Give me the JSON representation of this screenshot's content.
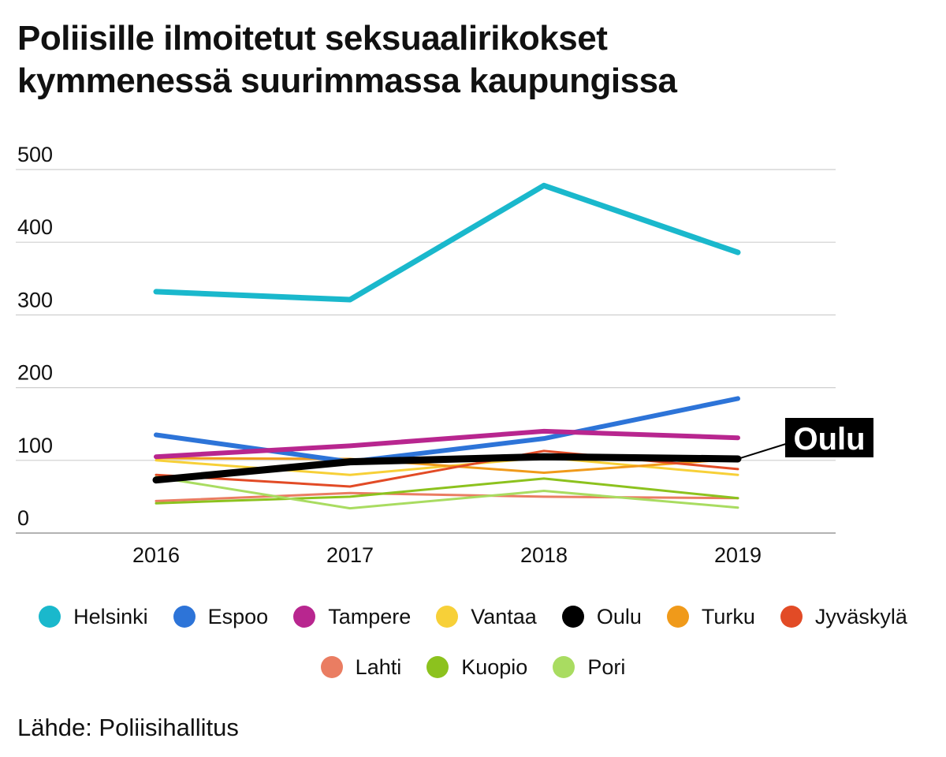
{
  "title_lines": [
    "Poliisille ilmoitetut seksuaalirikokset",
    "kymmenessä suurimmassa kaupungissa"
  ],
  "source": "Lähde: Poliisihallitus",
  "highlight_label": "Oulu",
  "chart_data": {
    "type": "line",
    "title": "Poliisille ilmoitetut seksuaalirikokset kymmenessä suurimmassa kaupungissa",
    "x": [
      "2016",
      "2017",
      "2018",
      "2019"
    ],
    "yticks": [
      0,
      100,
      200,
      300,
      400,
      500
    ],
    "ylim": [
      0,
      500
    ],
    "grid": true,
    "xlabel": "",
    "ylabel": "",
    "legend_position": "bottom",
    "highlight_series": "Oulu",
    "series": [
      {
        "name": "Helsinki",
        "color": "#1ab8cc",
        "values": [
          332,
          321,
          478,
          386
        ]
      },
      {
        "name": "Espoo",
        "color": "#2d74d8",
        "values": [
          135,
          98,
          130,
          185
        ]
      },
      {
        "name": "Tampere",
        "color": "#b8268f",
        "values": [
          105,
          120,
          140,
          131
        ]
      },
      {
        "name": "Vantaa",
        "color": "#f7d038",
        "values": [
          100,
          80,
          104,
          80
        ]
      },
      {
        "name": "Oulu",
        "color": "#000000",
        "values": [
          73,
          98,
          105,
          102
        ]
      },
      {
        "name": "Turku",
        "color": "#f09a1a",
        "values": [
          103,
          102,
          83,
          102
        ]
      },
      {
        "name": "Jyväskylä",
        "color": "#e24b26",
        "values": [
          80,
          64,
          113,
          88
        ]
      },
      {
        "name": "Lahti",
        "color": "#ea7d62",
        "values": [
          44,
          55,
          50,
          48
        ]
      },
      {
        "name": "Kuopio",
        "color": "#8cc21e",
        "values": [
          41,
          50,
          75,
          48
        ]
      },
      {
        "name": "Pori",
        "color": "#a9dc61",
        "values": [
          77,
          34,
          58,
          35
        ]
      }
    ]
  }
}
